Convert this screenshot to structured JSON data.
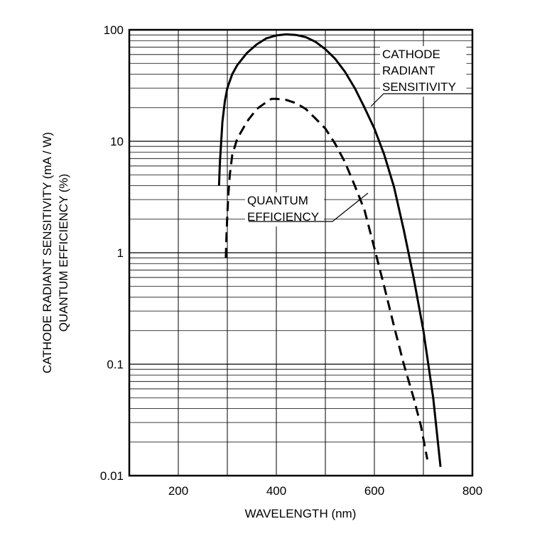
{
  "chart_data": {
    "type": "line",
    "title": "",
    "xlabel": "WAVELENGTH (nm)",
    "ylabel_lines": [
      "CATHODE RADIANT SENSITIVITY (mA / W)",
      "QUANTUM EFFICIENCY (%)"
    ],
    "xlim": [
      100,
      800
    ],
    "ylim": [
      0.01,
      100
    ],
    "yscale": "log",
    "grid": true,
    "x_ticks": [
      200,
      400,
      600,
      800
    ],
    "x_tick_labels": [
      "200",
      "400",
      "600",
      "800"
    ],
    "y_ticks": [
      100,
      10,
      1,
      0.1,
      0.01
    ],
    "y_tick_labels": [
      "100",
      "10",
      "1",
      "0.1",
      "0.01"
    ],
    "series": [
      {
        "name": "CATHODE RADIANT SENSITIVITY",
        "style": "solid",
        "x": [
          283,
          285,
          290,
          295,
          300,
          310,
          320,
          340,
          360,
          380,
          400,
          420,
          440,
          460,
          480,
          500,
          520,
          540,
          560,
          580,
          600,
          620,
          640,
          660,
          680,
          700,
          720,
          735
        ],
        "y": [
          4.0,
          6.5,
          15,
          23,
          30,
          40,
          48,
          62,
          74,
          84,
          89,
          91,
          90,
          86,
          78,
          67,
          55,
          42,
          30,
          20,
          13,
          7.6,
          3.9,
          1.6,
          0.6,
          0.2,
          0.05,
          0.012
        ]
      },
      {
        "name": "QUANTUM EFFICIENCY",
        "style": "dashed",
        "x": [
          297,
          298,
          300,
          302,
          305,
          310,
          320,
          340,
          360,
          380,
          390,
          400,
          420,
          440,
          460,
          480,
          500,
          520,
          540,
          560,
          580,
          600,
          620,
          640,
          660,
          680,
          695,
          708
        ],
        "y": [
          0.9,
          1.3,
          2.2,
          3.3,
          5.0,
          7.5,
          10.5,
          15,
          19.5,
          22.5,
          24,
          24,
          23.5,
          22,
          19.5,
          16,
          13,
          9.5,
          6.5,
          4.0,
          2.4,
          1.1,
          0.5,
          0.22,
          0.1,
          0.05,
          0.028,
          0.014
        ]
      }
    ],
    "annotations": [
      {
        "lines": [
          "CATHODE",
          "RADIANT",
          "SENSITIVITY"
        ],
        "series": "CATHODE RADIANT SENSITIVITY"
      },
      {
        "lines": [
          "QUANTUM",
          "EFFICIENCY"
        ],
        "series": "QUANTUM EFFICIENCY"
      }
    ]
  }
}
